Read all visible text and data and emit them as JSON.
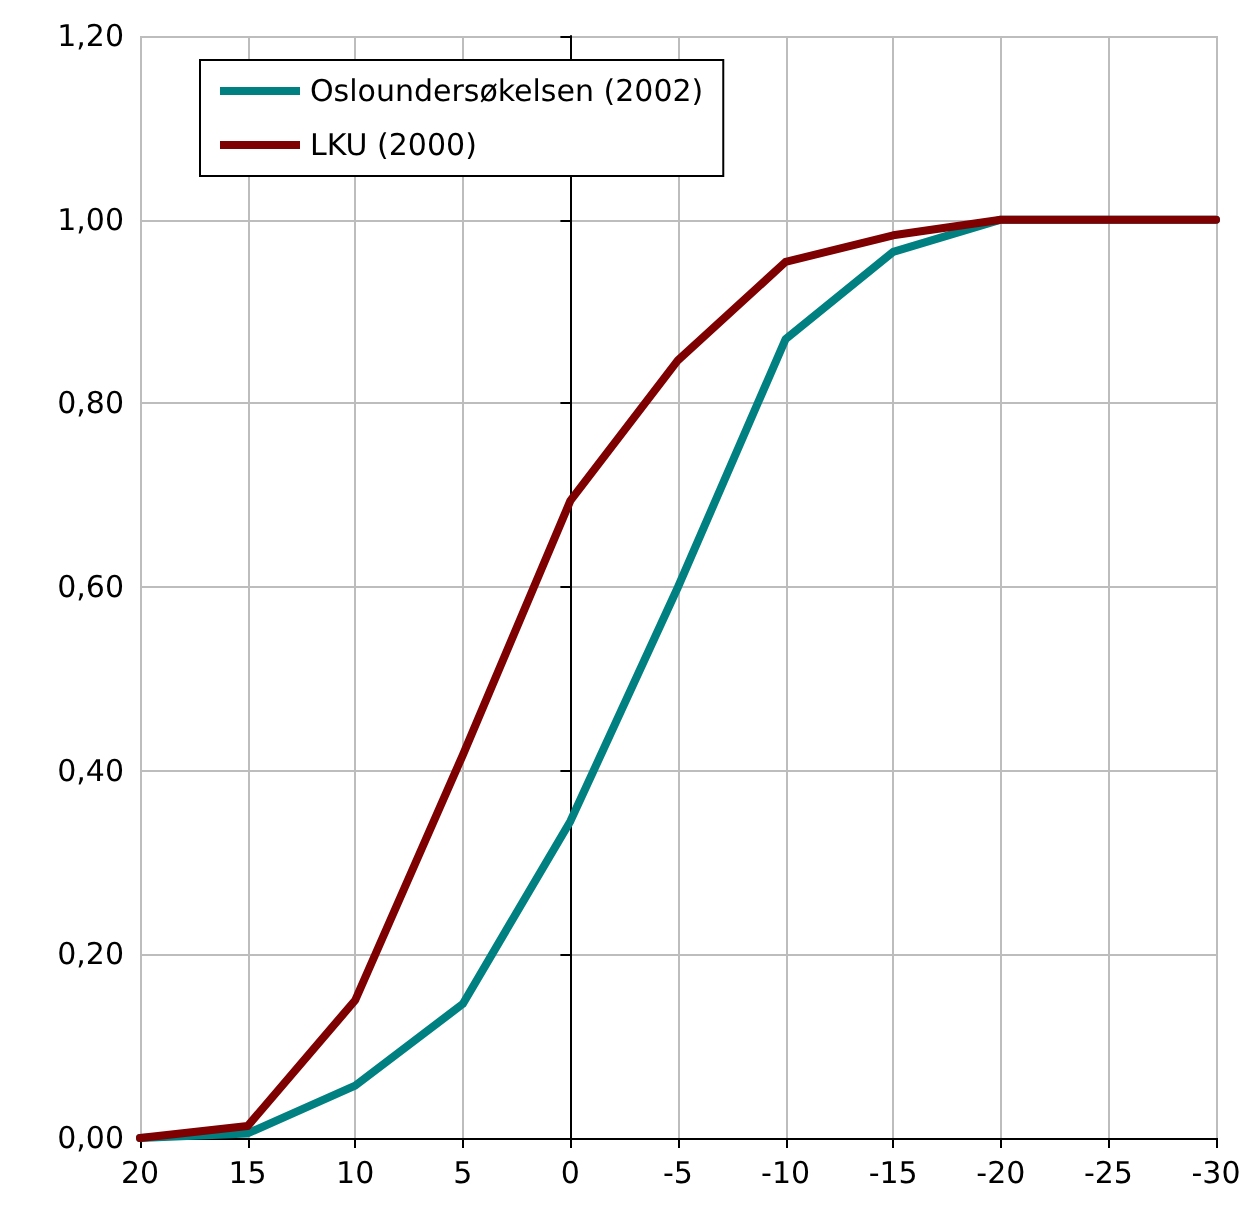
{
  "chart_data": {
    "type": "line",
    "x": [
      20,
      15,
      10,
      5,
      0,
      -5,
      -10,
      -15,
      -20,
      -25,
      -30
    ],
    "series": [
      {
        "name": "Osloundersøkelsen (2002)",
        "color": "#008080",
        "values": [
          0,
          0.005,
          0.057,
          0.146,
          0.345,
          0.6,
          0.87,
          0.965,
          1,
          1,
          1
        ]
      },
      {
        "name": "LKU (2000)",
        "color": "#7f0000",
        "values": [
          0,
          0.013,
          0.15,
          0.417,
          0.694,
          0.847,
          0.954,
          0.983,
          1,
          1,
          1
        ]
      }
    ],
    "xlim": [
      20,
      -30
    ],
    "xticks": [
      20,
      15,
      10,
      5,
      0,
      -5,
      -10,
      -15,
      -20,
      -25,
      -30
    ],
    "ylim": [
      0,
      1.2
    ],
    "yticks": [
      {
        "value": 0,
        "label": "0,00"
      },
      {
        "value": 0.2,
        "label": "0,20"
      },
      {
        "value": 0.4,
        "label": "0,40"
      },
      {
        "value": 0.6,
        "label": "0,60"
      },
      {
        "value": 0.8,
        "label": "0,80"
      },
      {
        "value": 1,
        "label": "1,00"
      },
      {
        "value": 1.2,
        "label": "1,20"
      }
    ],
    "grid": true,
    "legend": "top left",
    "marker": "none",
    "line_style": "solid"
  }
}
